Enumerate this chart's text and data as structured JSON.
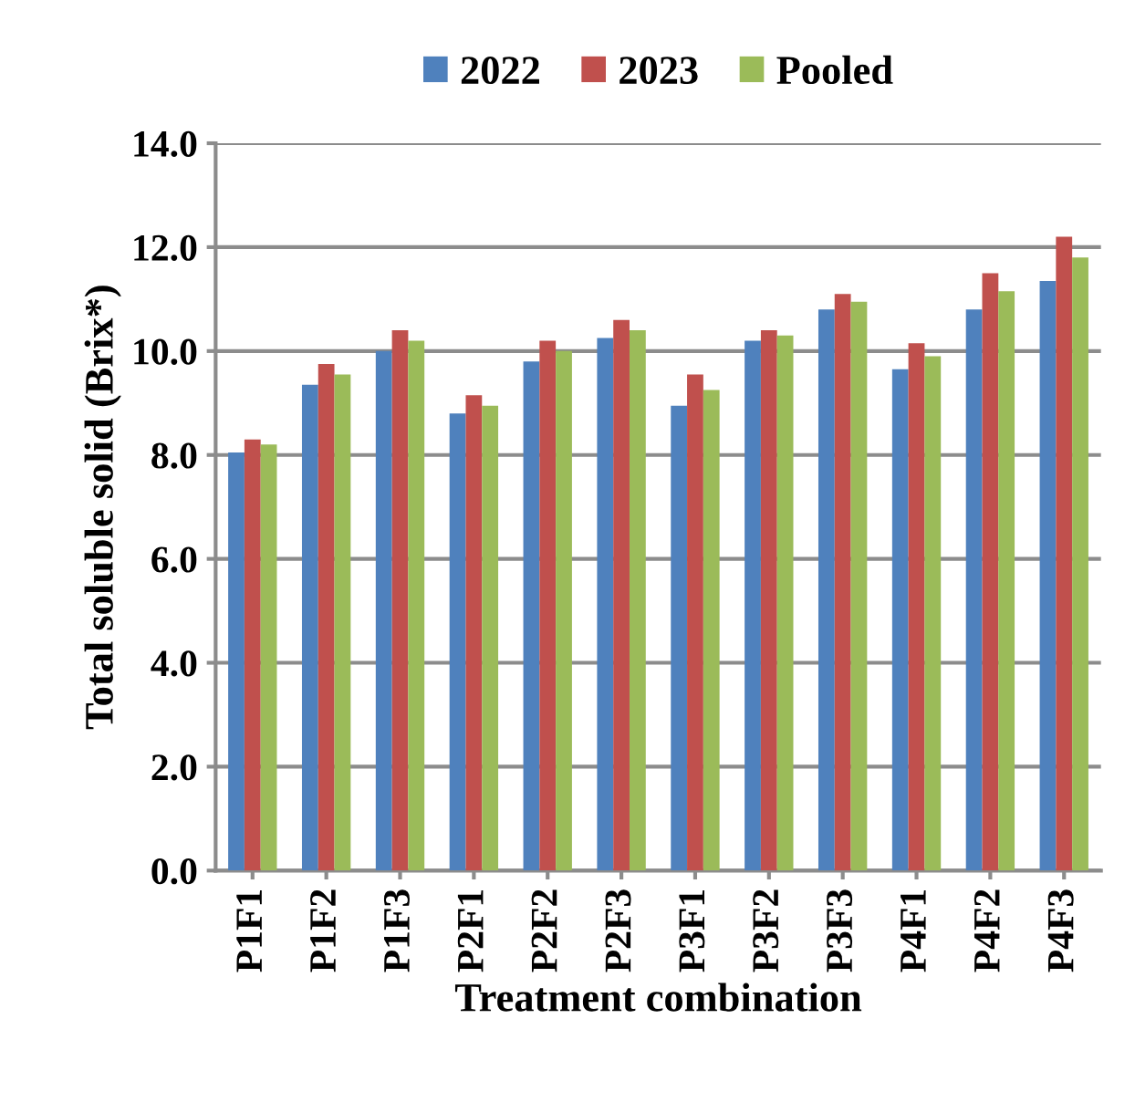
{
  "chart_data": {
    "type": "bar",
    "xlabel": "Treatment combination",
    "ylabel": "Total soluble solid (Brix*)",
    "categories": [
      "P1F1",
      "P1F2",
      "P1F3",
      "P2F1",
      "P2F2",
      "P2F3",
      "P3F1",
      "P3F2",
      "P3F3",
      "P4F1",
      "P4F2",
      "P4F3"
    ],
    "series": [
      {
        "name": "2022",
        "color": "#4f81bd",
        "values": [
          8.05,
          9.35,
          10.0,
          8.8,
          9.8,
          10.25,
          8.95,
          10.2,
          10.8,
          9.65,
          10.8,
          11.35
        ]
      },
      {
        "name": "2023",
        "color": "#c0504d",
        "values": [
          8.3,
          9.75,
          10.4,
          9.15,
          10.2,
          10.6,
          9.55,
          10.4,
          11.1,
          10.15,
          11.5,
          12.2
        ]
      },
      {
        "name": "Pooled",
        "color": "#9bbb59",
        "values": [
          8.2,
          9.55,
          10.2,
          8.95,
          10.0,
          10.4,
          9.25,
          10.3,
          10.95,
          9.9,
          11.15,
          11.8
        ]
      }
    ],
    "ylim": [
      0,
      14
    ],
    "yticks": [
      {
        "value": 0,
        "label": "0.0"
      },
      {
        "value": 2,
        "label": "2.0"
      },
      {
        "value": 4,
        "label": "4.0"
      },
      {
        "value": 6,
        "label": "6.0"
      },
      {
        "value": 8,
        "label": "8.0"
      },
      {
        "value": 10,
        "label": "10.0"
      },
      {
        "value": 12,
        "label": "12.0"
      },
      {
        "value": 14,
        "label": "14.0"
      }
    ],
    "grid": "y",
    "legend": "top"
  }
}
